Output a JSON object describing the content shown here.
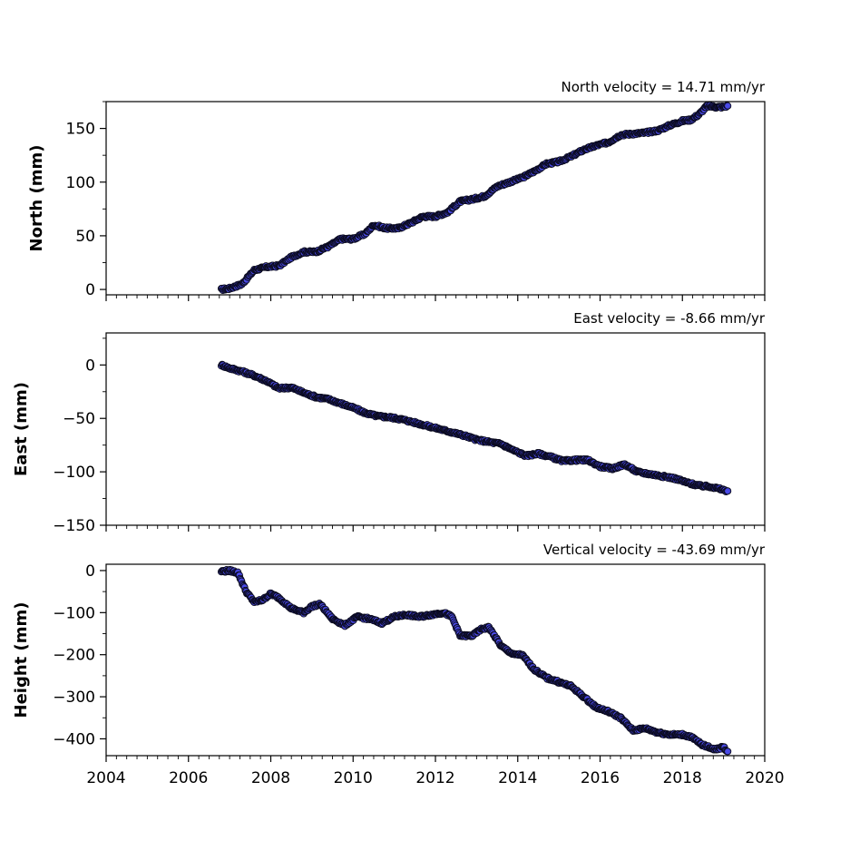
{
  "figure": {
    "x_tick_labels": [
      "2004",
      "2006",
      "2008",
      "2010",
      "2012",
      "2014",
      "2016",
      "2018",
      "2020"
    ],
    "marker_face_color": "#4a4ae8",
    "marker_edge_color": "#0a0a1e"
  },
  "chart_data": [
    {
      "type": "scatter",
      "title": "North velocity = 14.71 mm/yr",
      "ylabel": "North (mm)",
      "xlabel": "",
      "xlim": [
        2004,
        2020
      ],
      "ylim": [
        -5,
        175
      ],
      "yticks": [
        0,
        50,
        100,
        150
      ],
      "ytick_labels": [
        "0",
        "50",
        "100",
        "150"
      ],
      "x_major_ticks": [
        2004,
        2006,
        2008,
        2010,
        2012,
        2014,
        2016,
        2018,
        2020
      ],
      "x_tick_labels_shown": false,
      "grid": false,
      "series": [
        {
          "x": [
            2006.8,
            2007.0,
            2007.3,
            2007.6,
            2007.9,
            2008.2,
            2008.5,
            2008.8,
            2009.1,
            2009.4,
            2009.7,
            2010.0,
            2010.3,
            2010.5,
            2010.8,
            2011.1,
            2011.4,
            2011.7,
            2012.0,
            2012.3,
            2012.6,
            2012.9,
            2013.2,
            2013.5,
            2013.8,
            2014.1,
            2014.4,
            2014.7,
            2015.0,
            2015.3,
            2015.6,
            2015.9,
            2016.2,
            2016.5,
            2016.8,
            2017.1,
            2017.4,
            2017.7,
            2018.0,
            2018.2,
            2018.4,
            2018.6,
            2018.8,
            2019.0,
            2019.1
          ],
          "y": [
            0,
            1,
            5,
            18,
            21,
            22,
            30,
            35,
            35,
            40,
            47,
            47,
            52,
            60,
            57,
            57,
            62,
            68,
            68,
            72,
            82,
            84,
            87,
            96,
            100,
            104,
            110,
            117,
            119,
            124,
            130,
            134,
            137,
            144,
            145,
            146,
            148,
            153,
            157,
            158,
            163,
            171,
            170,
            170,
            171
          ]
        }
      ]
    },
    {
      "type": "scatter",
      "title": "East velocity = -8.66 mm/yr",
      "ylabel": "East (mm)",
      "xlabel": "",
      "xlim": [
        2004,
        2020
      ],
      "ylim": [
        -150,
        30
      ],
      "yticks": [
        -150,
        -100,
        -50,
        0
      ],
      "ytick_labels": [
        "−150",
        "−100",
        "−50",
        "0"
      ],
      "x_major_ticks": [
        2004,
        2006,
        2008,
        2010,
        2012,
        2014,
        2016,
        2018,
        2020
      ],
      "x_tick_labels_shown": false,
      "grid": false,
      "series": [
        {
          "x": [
            2006.8,
            2007.0,
            2007.3,
            2007.6,
            2007.9,
            2008.2,
            2008.5,
            2008.8,
            2009.1,
            2009.4,
            2009.7,
            2010.0,
            2010.3,
            2010.6,
            2010.9,
            2011.2,
            2011.5,
            2011.8,
            2012.1,
            2012.4,
            2012.7,
            2013.0,
            2013.3,
            2013.6,
            2013.9,
            2014.2,
            2014.5,
            2014.8,
            2015.1,
            2015.4,
            2015.7,
            2016.0,
            2016.3,
            2016.6,
            2016.9,
            2017.2,
            2017.5,
            2017.8,
            2018.1,
            2018.4,
            2018.7,
            2019.0,
            2019.1
          ],
          "y": [
            0,
            -3,
            -6,
            -10,
            -15,
            -22,
            -21,
            -26,
            -30,
            -32,
            -36,
            -40,
            -45,
            -48,
            -49,
            -51,
            -54,
            -57,
            -60,
            -63,
            -66,
            -70,
            -72,
            -74,
            -80,
            -85,
            -83,
            -86,
            -90,
            -89,
            -89,
            -95,
            -97,
            -93,
            -100,
            -102,
            -104,
            -106,
            -110,
            -113,
            -114,
            -117,
            -118
          ]
        }
      ]
    },
    {
      "type": "scatter",
      "title": "Vertical velocity = -43.69 mm/yr",
      "ylabel": "Height (mm)",
      "xlabel": "",
      "xlim": [
        2004,
        2020
      ],
      "ylim": [
        -440,
        15
      ],
      "yticks": [
        -400,
        -300,
        -200,
        -100,
        0
      ],
      "ytick_labels": [
        "−400",
        "−300",
        "−200",
        "−100",
        "0"
      ],
      "x_major_ticks": [
        2004,
        2006,
        2008,
        2010,
        2012,
        2014,
        2016,
        2018,
        2020
      ],
      "x_tick_labels_shown": true,
      "grid": false,
      "series": [
        {
          "x": [
            2006.8,
            2007.0,
            2007.2,
            2007.4,
            2007.6,
            2007.8,
            2008.0,
            2008.2,
            2008.5,
            2008.8,
            2009.0,
            2009.2,
            2009.5,
            2009.8,
            2010.1,
            2010.4,
            2010.7,
            2011.0,
            2011.3,
            2011.6,
            2011.9,
            2012.2,
            2012.4,
            2012.6,
            2012.9,
            2013.1,
            2013.3,
            2013.6,
            2013.9,
            2014.1,
            2014.4,
            2014.7,
            2015.0,
            2015.3,
            2015.6,
            2015.9,
            2016.2,
            2016.5,
            2016.8,
            2017.1,
            2017.4,
            2017.7,
            2018.0,
            2018.2,
            2018.5,
            2018.8,
            2019.0,
            2019.1
          ],
          "y": [
            -2,
            0,
            -5,
            -50,
            -75,
            -70,
            -55,
            -65,
            -90,
            -100,
            -85,
            -80,
            -115,
            -130,
            -110,
            -115,
            -125,
            -110,
            -105,
            -110,
            -105,
            -100,
            -110,
            -155,
            -155,
            -140,
            -135,
            -180,
            -200,
            -200,
            -235,
            -255,
            -265,
            -275,
            -300,
            -325,
            -335,
            -350,
            -380,
            -375,
            -385,
            -390,
            -390,
            -395,
            -415,
            -425,
            -420,
            -430
          ]
        }
      ]
    }
  ]
}
